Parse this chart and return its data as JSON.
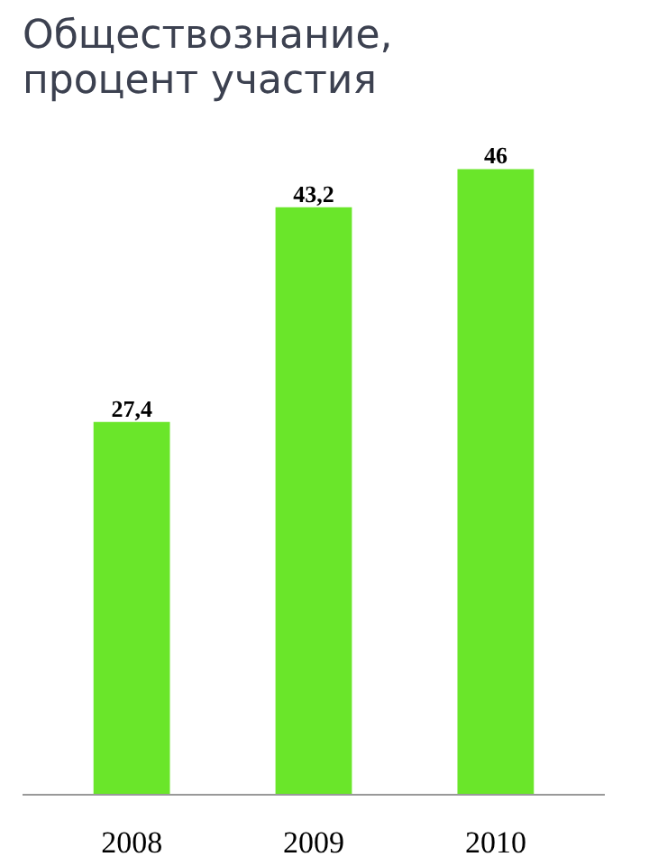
{
  "chart_data": {
    "type": "bar",
    "title": "Обществознание,\nпроцент участия",
    "categories": [
      "2008",
      "2009",
      "2010"
    ],
    "values": [
      27.4,
      43.2,
      46
    ],
    "value_labels": [
      "27,4",
      "43,2",
      "46"
    ],
    "color": "#6ae62a",
    "tick_labels": "x",
    "grid": false
  }
}
